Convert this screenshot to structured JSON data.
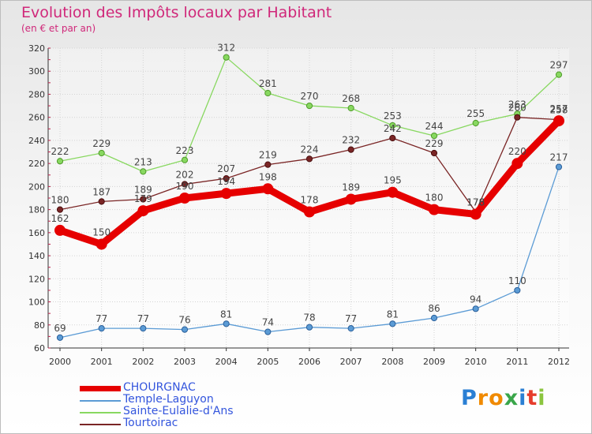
{
  "chart_data": {
    "type": "line",
    "title": "Evolution des Impôts locaux par Habitant",
    "subtitle": "(en € et par an)",
    "x": [
      "2000",
      "2001",
      "2002",
      "2003",
      "2004",
      "2005",
      "2006",
      "2007",
      "2008",
      "2009",
      "2010",
      "2011",
      "2012"
    ],
    "ylim": [
      60,
      320
    ],
    "yticks": [
      60,
      80,
      100,
      120,
      140,
      160,
      180,
      200,
      220,
      240,
      260,
      280,
      300,
      320
    ],
    "series": [
      {
        "name": "CHOURGNAC",
        "color": "#e60000",
        "values": [
          162,
          150,
          179,
          190,
          194,
          198,
          178,
          189,
          195,
          180,
          176,
          220,
          257
        ],
        "labels": [
          "162",
          "150",
          "179",
          "190",
          "194",
          "198",
          "178",
          "189",
          "195",
          "180",
          "176",
          "220",
          "257"
        ]
      },
      {
        "name": "Temple-Laguyon",
        "color": "#5b9bd5",
        "values": [
          69,
          77,
          77,
          76,
          81,
          74,
          78,
          77,
          81,
          86,
          94,
          110,
          217
        ],
        "labels": [
          "69",
          "77",
          "77",
          "76",
          "81",
          "74",
          "78",
          "77",
          "81",
          "86",
          "94",
          "110",
          "217"
        ]
      },
      {
        "name": "Sainte-Eulalie-d'Ans",
        "color": "#88d860",
        "values": [
          222,
          229,
          213,
          223,
          312,
          281,
          270,
          268,
          253,
          244,
          255,
          263,
          297
        ],
        "labels": [
          "222",
          "229",
          "213",
          "223",
          "312",
          "281",
          "270",
          "268",
          "253",
          "244",
          "255",
          "263",
          "297"
        ]
      },
      {
        "name": "Tourtoirac",
        "color": "#7a2525",
        "values": [
          180,
          187,
          189,
          202,
          207,
          219,
          224,
          232,
          242,
          229,
          178,
          260,
          258
        ],
        "labels": [
          "180",
          "187",
          "189",
          "202",
          "207",
          "219",
          "224",
          "232",
          "242",
          "229",
          "178",
          "260",
          "258"
        ]
      }
    ]
  },
  "logo": {
    "text": "Proxiti",
    "letters": [
      "P",
      "r",
      "o",
      "x",
      "i",
      "t",
      "i"
    ],
    "colors": [
      "#2a7fd4",
      "#f08a00",
      "#f08a00",
      "#3aa64a",
      "#2a7fd4",
      "#e63c2c",
      "#8bc53f"
    ]
  }
}
